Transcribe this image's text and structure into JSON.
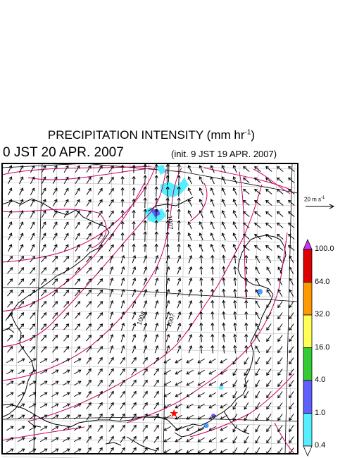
{
  "title": {
    "text": "PRECIPITATION INTENSITY (mm hr",
    "unit_exponent": "-1",
    "close": ")"
  },
  "valid_time": "0 JST 20 APR. 2007",
  "init_time": "(init. 9 JST 19 APR. 2007)",
  "reference_vector": {
    "label": "20 m s",
    "exponent": "-1"
  },
  "pressure_contour_labels": [
    "1007",
    "1008",
    "1007"
  ],
  "marker": {
    "symbol": "★",
    "color": "#ff0000",
    "name": "location-marker"
  },
  "colorbar": {
    "labels": [
      "100.0",
      "64.0",
      "32.0",
      "16.0",
      "4.0",
      "1.0",
      "0.4"
    ],
    "colors": [
      "#dd0000",
      "#ff9900",
      "#ffff55",
      "#33cc33",
      "#6060ff",
      "#55eeff"
    ],
    "over_color": "#cc33ff",
    "under_color": "#ffffff"
  },
  "colors": {
    "contour": "#cc0066",
    "coast": "#000000",
    "grid": "#bbbbbb",
    "rain_light": "#55eeff",
    "rain_moderate": "#6060ff"
  }
}
